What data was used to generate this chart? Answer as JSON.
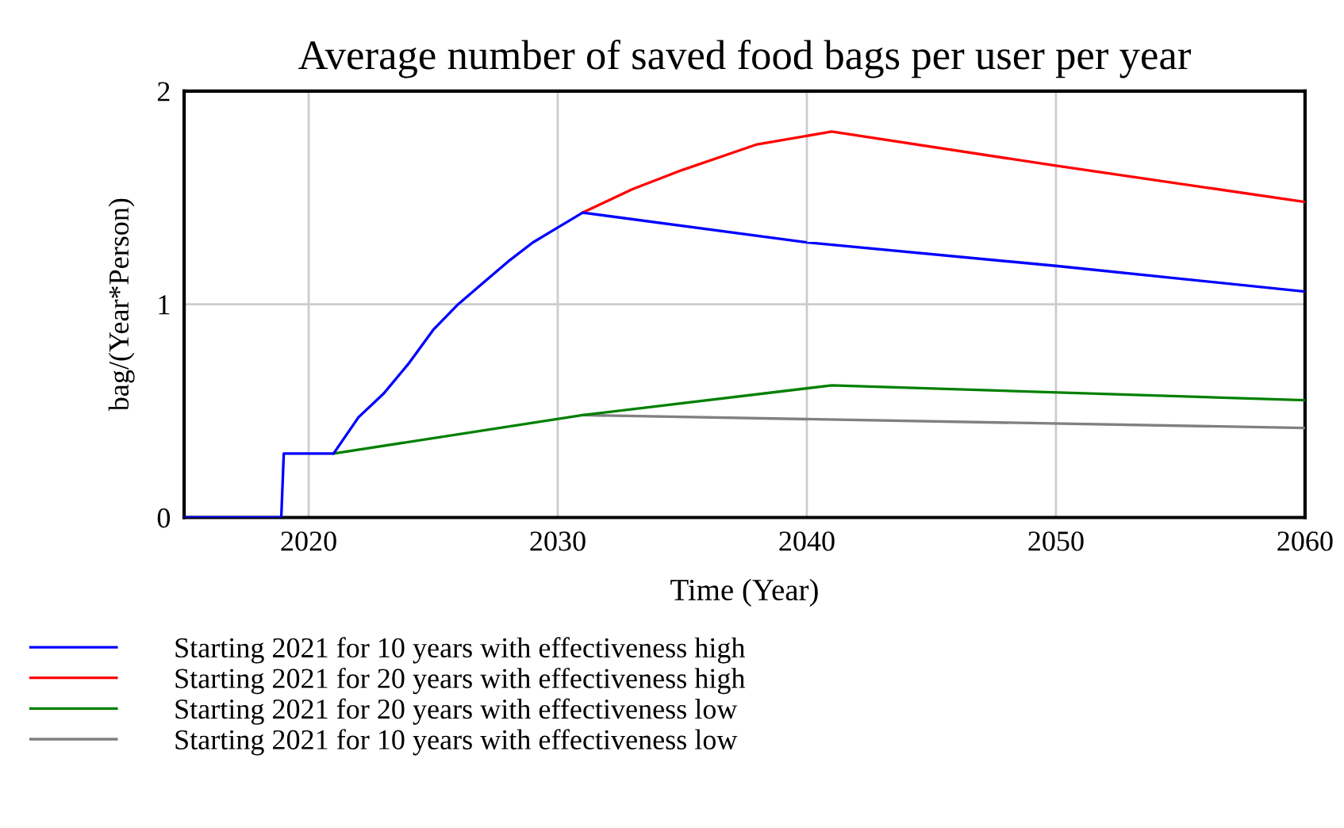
{
  "chart_data": {
    "type": "line",
    "title": "Average number of saved food bags per user per year",
    "xlabel": "Time (Year)",
    "ylabel": "bag/(Year*Person)",
    "series": [
      {
        "name": "Starting 2021 for 10 years with effectiveness high",
        "color": "#0000ff",
        "x": [
          2015,
          2018.9,
          2019,
          2021,
          2022,
          2023,
          2024,
          2025,
          2026,
          2027,
          2028,
          2029,
          2030,
          2031,
          2040,
          2050,
          2060
        ],
        "values": [
          0,
          0,
          0.3,
          0.3,
          0.47,
          0.58,
          0.72,
          0.88,
          1.0,
          1.1,
          1.2,
          1.29,
          1.36,
          1.43,
          1.29,
          1.18,
          1.06
        ]
      },
      {
        "name": "Starting 2021 for 20 years with effectiveness high",
        "color": "#ff0000",
        "x": [
          2031,
          2033,
          2035,
          2038,
          2041,
          2050,
          2060
        ],
        "values": [
          1.43,
          1.54,
          1.63,
          1.75,
          1.81,
          1.65,
          1.48
        ]
      },
      {
        "name": "Starting 2021 for 20 years with effectiveness low",
        "color": "#008000",
        "x": [
          2021,
          2031,
          2041,
          2060
        ],
        "values": [
          0.3,
          0.48,
          0.62,
          0.55
        ]
      },
      {
        "name": "Starting 2021 for 10 years with effectiveness low",
        "color": "#808080",
        "x": [
          2031,
          2060
        ],
        "values": [
          0.48,
          0.42
        ]
      }
    ],
    "xlim": [
      2015,
      2060
    ],
    "xticks": [
      2020,
      2030,
      2040,
      2050,
      2060
    ],
    "ylim": [
      0,
      2
    ],
    "yticks": [
      0,
      1,
      2
    ],
    "grid": true,
    "legend": "bottom"
  }
}
